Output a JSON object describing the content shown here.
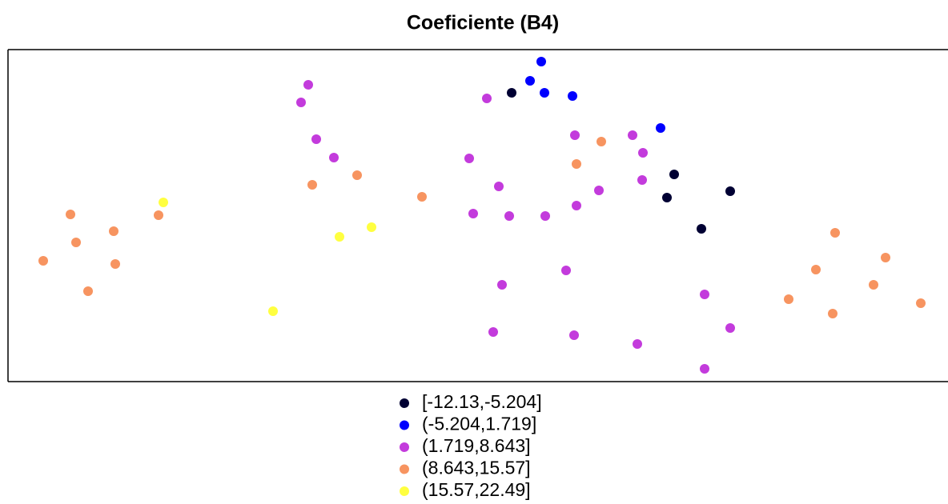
{
  "chart_data": {
    "type": "scatter",
    "title": "Coeficiente (B4)",
    "xlim": [
      0,
      1174
    ],
    "ylim": [
      0,
      415
    ],
    "series": [
      {
        "name": "[-12.13,-5.204]",
        "color": "#000033",
        "x": [
          629,
          832,
          823,
          902,
          866
        ],
        "values": [
          361,
          259,
          230,
          238,
          191
        ]
      },
      {
        "name": "(-5.204,1.719]",
        "color": "#0000FF",
        "x": [
          666,
          652,
          670,
          705,
          815
        ],
        "values": [
          400,
          376,
          361,
          357,
          317
        ]
      },
      {
        "name": "(1.719,8.643]",
        "color": "#C33BDC",
        "x": [
          375,
          366,
          598,
          385,
          407,
          576,
          708,
          780,
          793,
          613,
          792,
          738,
          581,
          626,
          671,
          710,
          697,
          617,
          870,
          606,
          707,
          786,
          902,
          870
        ],
        "values": [
          371,
          349,
          354,
          303,
          280,
          279,
          308,
          308,
          286,
          244,
          252,
          239,
          210,
          207,
          207,
          220,
          139,
          121,
          109,
          62,
          58,
          47,
          67,
          16
        ]
      },
      {
        "name": "(8.643,15.57]",
        "color": "#F79460",
        "x": [
          78,
          85,
          44,
          100,
          132,
          134,
          188,
          380,
          436,
          517,
          741,
          710,
          1033,
          1009,
          1096,
          1081,
          975,
          1030,
          1140
        ],
        "values": [
          209,
          174,
          151,
          113,
          188,
          147,
          208,
          246,
          258,
          231,
          300,
          272,
          186,
          140,
          155,
          121,
          103,
          85,
          98
        ]
      },
      {
        "name": "(15.57,22.49]",
        "color": "#FFFF40",
        "x": [
          194,
          414,
          454,
          331
        ],
        "values": [
          224,
          181,
          193,
          88
        ]
      }
    ]
  }
}
